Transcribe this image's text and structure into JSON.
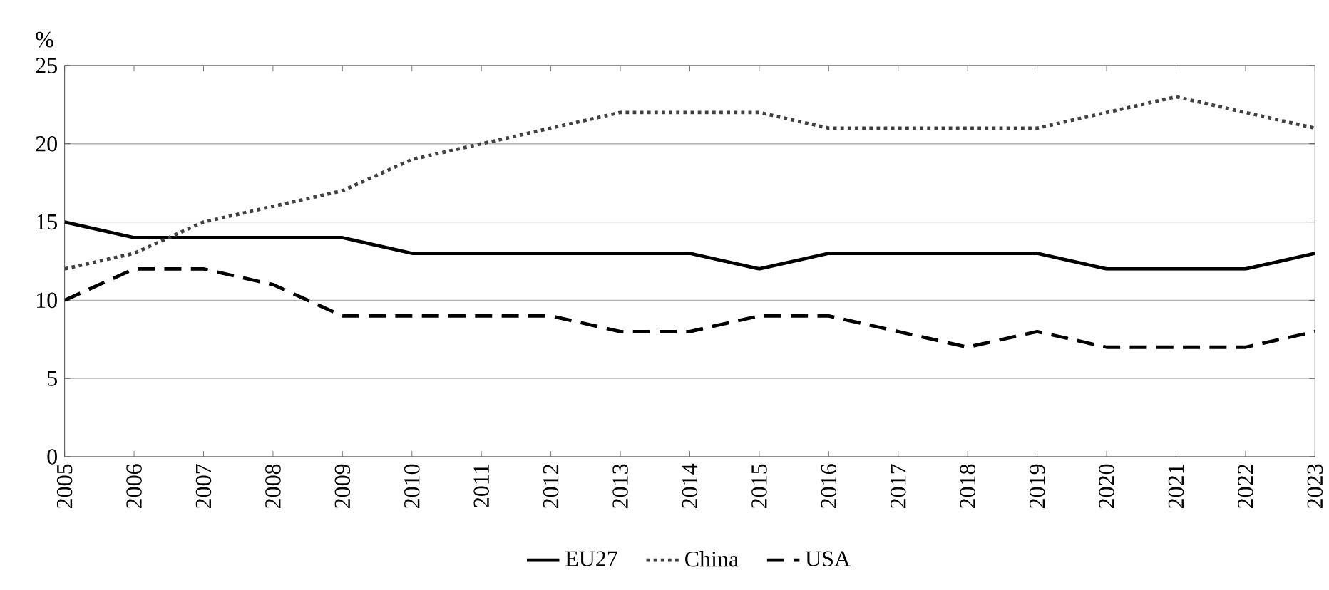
{
  "chart_data": {
    "type": "line",
    "ylabel": "%",
    "categories": [
      "2005",
      "2006",
      "2007",
      "2008",
      "2009",
      "2010",
      "2011",
      "2012",
      "2013",
      "2014",
      "2015",
      "2016",
      "2017",
      "2018",
      "2019",
      "2020",
      "2021",
      "2022",
      "2023"
    ],
    "ylim": [
      0,
      25
    ],
    "yticks": [
      0,
      5,
      10,
      15,
      20,
      25
    ],
    "grid": "y",
    "legend": "bottom",
    "marker": "none",
    "series": [
      {
        "name": "EU27",
        "color": "#000000",
        "line_style": "solid",
        "values": [
          15,
          14,
          14,
          14,
          14,
          13,
          13,
          13,
          13,
          13,
          12,
          13,
          13,
          13,
          13,
          12,
          12,
          12,
          13
        ]
      },
      {
        "name": "China",
        "color": "#404040",
        "line_style": "dotted",
        "values": [
          12,
          13,
          15,
          16,
          17,
          19,
          20,
          21,
          22,
          22,
          22,
          21,
          21,
          21,
          21,
          22,
          23,
          22,
          21
        ]
      },
      {
        "name": "USA",
        "color": "#000000",
        "line_style": "dashed",
        "values": [
          10,
          12,
          12,
          11,
          9,
          9,
          9,
          9,
          8,
          8,
          9,
          9,
          8,
          7,
          8,
          7,
          7,
          7,
          8
        ]
      }
    ]
  }
}
